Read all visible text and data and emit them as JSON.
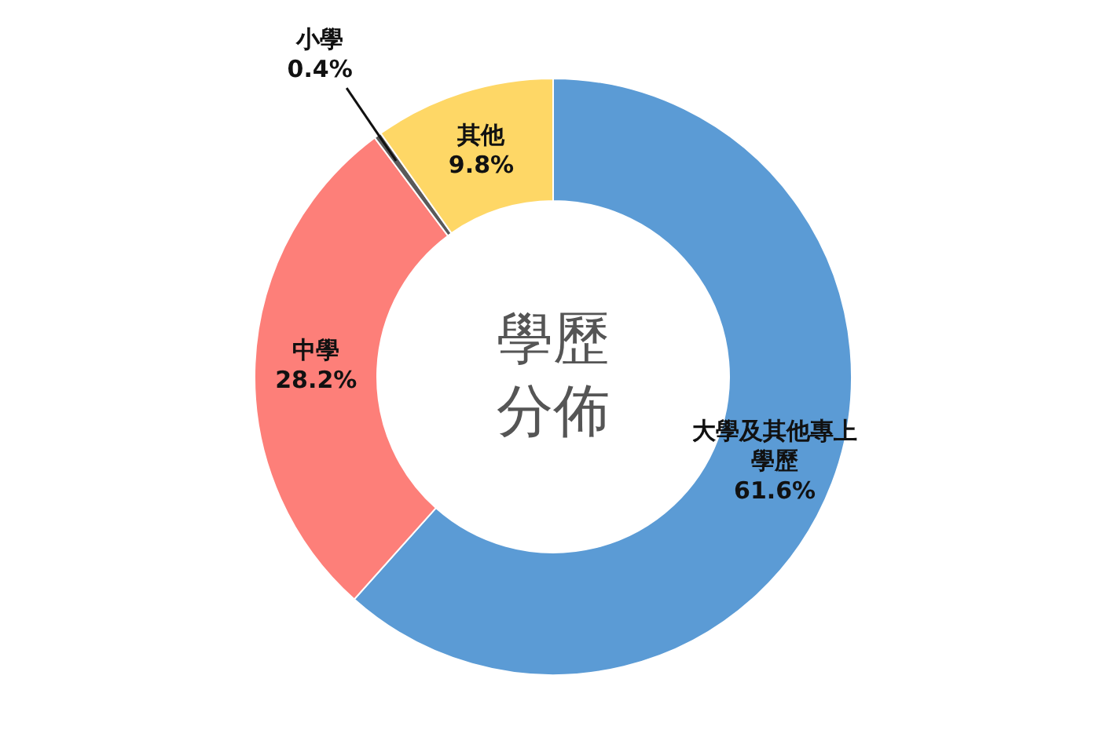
{
  "chart_data": {
    "type": "donut",
    "title": "學歷分佈",
    "categories": [
      "大學及其他專上學歷",
      "中學",
      "小學",
      "其他"
    ],
    "values": [
      61.6,
      28.2,
      0.4,
      9.8
    ],
    "value_labels": [
      "61.6%",
      "28.2%",
      "0.4%",
      "9.8%"
    ],
    "colors": [
      "#5b9bd5",
      "#fd7f79",
      "#5a5a5a",
      "#fed766"
    ],
    "legend": false
  }
}
